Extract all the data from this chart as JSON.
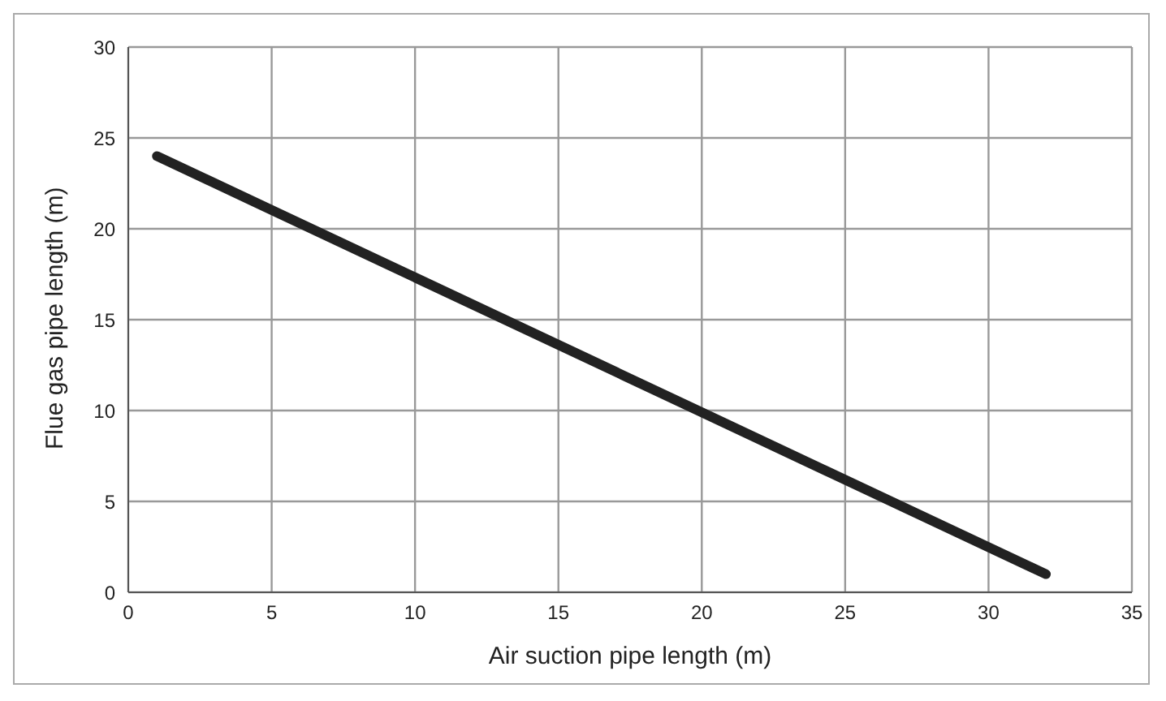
{
  "chart_data": {
    "type": "line",
    "xlabel": "Air suction pipe length (m)",
    "ylabel": "Flue gas pipe length (m)",
    "x": [
      1,
      32
    ],
    "series": [
      {
        "color": "#222222",
        "values": [
          24,
          1
        ]
      }
    ],
    "xlim": [
      0,
      35
    ],
    "xticks": [
      0,
      5,
      10,
      15,
      20,
      25,
      30,
      35
    ],
    "ylim": [
      0,
      30
    ],
    "yticks": [
      0,
      5,
      10,
      15,
      20,
      25,
      30
    ],
    "grid": true,
    "marker": "none",
    "line_style": "solid"
  }
}
